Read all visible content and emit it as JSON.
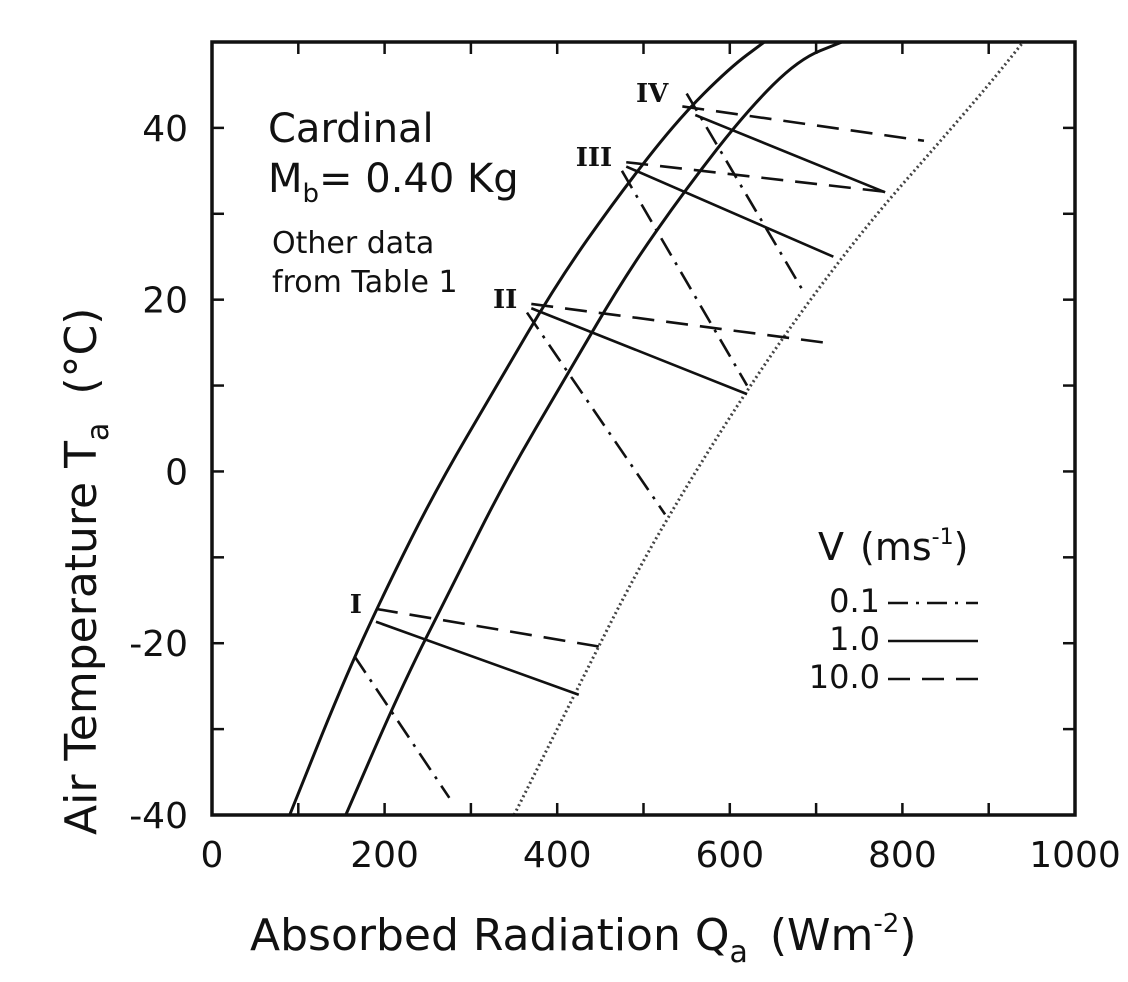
{
  "chart_data": {
    "type": "line",
    "xlabel": "Absorbed Radiation Q",
    "xlabel_sub": "a",
    "xlabel_unit": "(Wm",
    "xlabel_unit_sup": "-2",
    "xlabel_unit_close": ")",
    "ylabel": "Air Temperature T",
    "ylabel_sub": "a",
    "ylabel_unit": "(°C)",
    "xlim": [
      0,
      1000
    ],
    "ylim": [
      -40,
      50
    ],
    "xticks": [
      "0",
      "200",
      "400",
      "600",
      "800",
      "1000"
    ],
    "yticks": [
      "-40",
      "-20",
      "0",
      "20",
      "40"
    ],
    "annotation": {
      "line1": "Cardinal",
      "mass_symbol": "M",
      "mass_sub": "b",
      "mass_value": "= 0.40 Kg",
      "line3": "Other data",
      "line4": "from Table 1"
    },
    "legend": {
      "title": "V",
      "title_unit": "(ms",
      "title_unit_sup": "-1",
      "title_unit_close": ")",
      "placement": "lower-right",
      "entries": [
        {
          "label": "0.1",
          "style": "dash-dot"
        },
        {
          "label": "1.0",
          "style": "solid"
        },
        {
          "label": "10.0",
          "style": "dashed"
        }
      ]
    },
    "boundary_curves": [
      {
        "style": "solid",
        "x": [
          90,
          150,
          200,
          260,
          330,
          400,
          470,
          540,
          600,
          640
        ],
        "y": [
          -40,
          -25,
          -14,
          -2,
          10,
          22,
          32,
          41,
          47,
          50
        ]
      },
      {
        "style": "solid",
        "x": [
          155,
          220,
          280,
          340,
          410,
          480,
          550,
          620,
          680,
          730
        ],
        "y": [
          -40,
          -25,
          -13,
          -1,
          11,
          23,
          33,
          42,
          48,
          50
        ]
      },
      {
        "style": "dotted",
        "x": [
          350,
          420,
          490,
          560,
          630,
          700,
          770,
          840,
          900,
          940
        ],
        "y": [
          -40,
          -26,
          -12,
          0,
          11,
          21,
          30,
          38,
          45,
          50
        ]
      }
    ],
    "regions": [
      {
        "label": "I",
        "x": [
          190,
          190,
          165
        ],
        "y": [
          -16,
          -17.5,
          -21.5
        ],
        "segments": [
          {
            "style": "dashed",
            "x": [
              190,
              455
            ],
            "y": [
              -16,
              -20.5
            ]
          },
          {
            "style": "solid",
            "x": [
              190,
              425
            ],
            "y": [
              -17.5,
              -26
            ]
          },
          {
            "style": "dash-dot",
            "x": [
              165,
              275
            ],
            "y": [
              -21.5,
              -38
            ]
          }
        ]
      },
      {
        "label": "II",
        "x": [
          370,
          370,
          365
        ],
        "y": [
          19.5,
          19,
          18.5
        ],
        "segments": [
          {
            "style": "dashed",
            "x": [
              370,
              710
            ],
            "y": [
              19.5,
              15
            ]
          },
          {
            "style": "solid",
            "x": [
              370,
              620
            ],
            "y": [
              19,
              9
            ]
          },
          {
            "style": "dash-dot",
            "x": [
              365,
              525
            ],
            "y": [
              18.5,
              -5
            ]
          }
        ]
      },
      {
        "label": "III",
        "x": [
          480,
          480,
          475
        ],
        "y": [
          36,
          35.5,
          35
        ],
        "segments": [
          {
            "style": "dashed",
            "x": [
              480,
              785
            ],
            "y": [
              36,
              32.5
            ]
          },
          {
            "style": "solid",
            "x": [
              480,
              720
            ],
            "y": [
              35.5,
              25
            ]
          },
          {
            "style": "dash-dot",
            "x": [
              475,
              620
            ],
            "y": [
              35,
              10
            ]
          }
        ]
      },
      {
        "label": "IV",
        "x": [
          545,
          545,
          550
        ],
        "y": [
          43.5,
          42,
          44
        ],
        "segments": [
          {
            "style": "dashed",
            "x": [
              545,
              825
            ],
            "y": [
              42.5,
              38.5
            ]
          },
          {
            "style": "solid",
            "x": [
              560,
              780
            ],
            "y": [
              41.5,
              32.5
            ]
          },
          {
            "style": "dash-dot",
            "x": [
              550,
              685
            ],
            "y": [
              44,
              21
            ]
          }
        ]
      }
    ]
  }
}
